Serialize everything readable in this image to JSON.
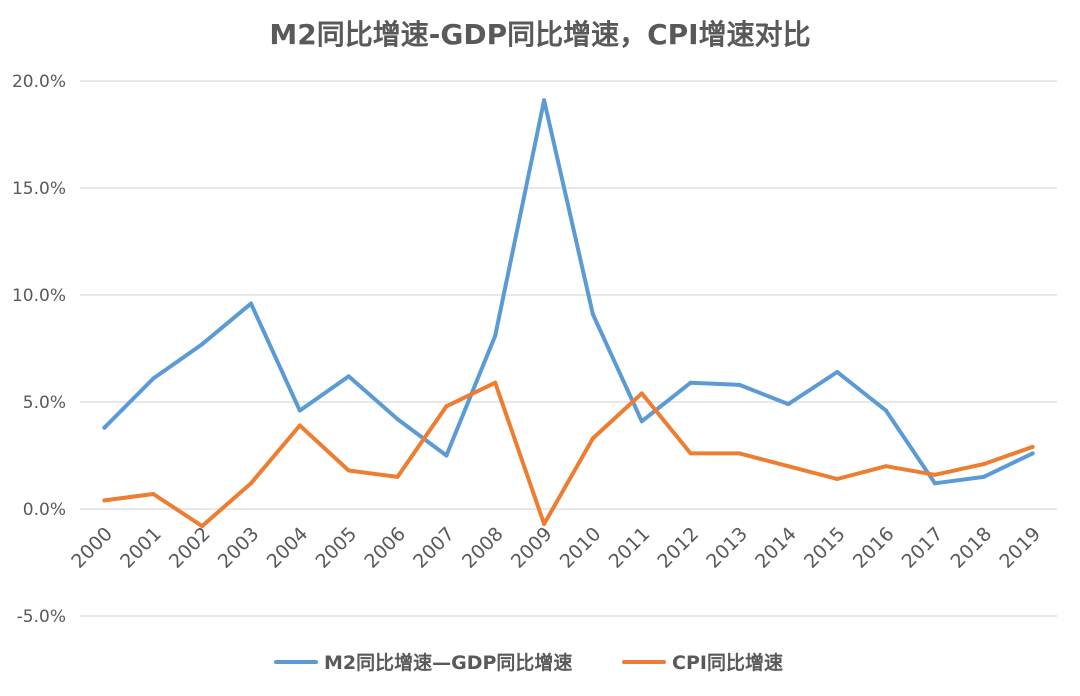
{
  "chart_data": {
    "type": "line",
    "title": "M2同比增速-GDP同比增速，CPI增速对比",
    "x": [
      "2000",
      "2001",
      "2002",
      "2003",
      "2004",
      "2005",
      "2006",
      "2007",
      "2008",
      "2009",
      "2010",
      "2011",
      "2012",
      "2013",
      "2014",
      "2015",
      "2016",
      "2017",
      "2018",
      "2019"
    ],
    "series": [
      {
        "name": "M2同比增速—GDP同比增速",
        "color": "#5B9BD5",
        "values": [
          3.8,
          6.1,
          7.7,
          9.6,
          4.6,
          6.2,
          4.2,
          2.5,
          8.1,
          19.1,
          9.1,
          4.1,
          5.9,
          5.8,
          4.9,
          6.4,
          4.6,
          1.2,
          1.5,
          2.6
        ]
      },
      {
        "name": "CPI同比增速",
        "color": "#ED7D31",
        "values": [
          0.4,
          0.7,
          -0.8,
          1.2,
          3.9,
          1.8,
          1.5,
          4.8,
          5.9,
          -0.7,
          3.3,
          5.4,
          2.6,
          2.6,
          2.0,
          1.4,
          2.0,
          1.6,
          2.1,
          2.9
        ]
      }
    ],
    "y_ticks": [
      "20.0%",
      "15.0%",
      "10.0%",
      "5.0%",
      "0.0%",
      "-5.0%"
    ],
    "ylim": [
      -5,
      20
    ],
    "grid": true,
    "legend": "bottom"
  }
}
